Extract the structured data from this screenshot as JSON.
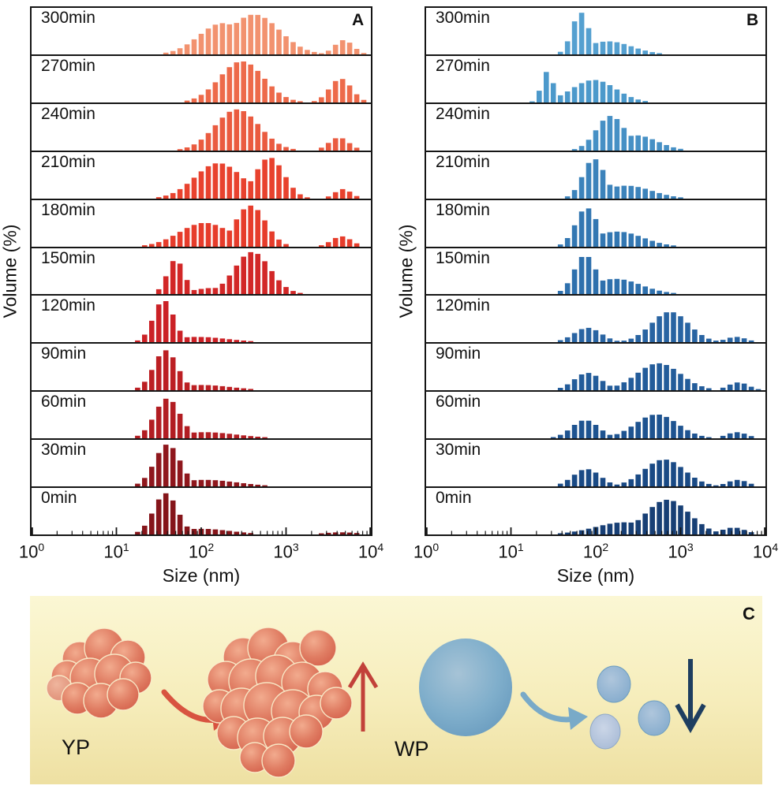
{
  "chart_data": [
    {
      "panel_label": "A",
      "type": "bar",
      "subtype": "stacked-time-histograms",
      "xlabel": "Size (nm)",
      "ylabel": "Volume (%)",
      "x_scale": "log10",
      "x_range_nm": [
        1,
        10000
      ],
      "x_tick_exponents": [
        0,
        1,
        2,
        3,
        4
      ],
      "bars_per_decade": 12,
      "peak_format": "[center_nm, relative_height_0to1, sigma_log10]",
      "rows": [
        {
          "time": "300min",
          "color": "#F2926F",
          "peaks": [
            [
              180,
              0.72,
              0.28
            ],
            [
              420,
              0.92,
              0.3
            ],
            [
              4800,
              0.33,
              0.11
            ]
          ]
        },
        {
          "time": "270min",
          "color": "#ED6A4A",
          "peaks": [
            [
              300,
              0.95,
              0.26
            ],
            [
              4400,
              0.55,
              0.13
            ]
          ]
        },
        {
          "time": "240min",
          "color": "#EA5B40",
          "peaks": [
            [
              265,
              0.95,
              0.26
            ],
            [
              4200,
              0.3,
              0.12
            ]
          ]
        },
        {
          "time": "210min",
          "color": "#E8422E",
          "peaks": [
            [
              160,
              0.82,
              0.28
            ],
            [
              640,
              0.95,
              0.17
            ],
            [
              4700,
              0.22,
              0.1
            ]
          ]
        },
        {
          "time": "180min",
          "color": "#E63C2B",
          "peaks": [
            [
              110,
              0.55,
              0.3
            ],
            [
              380,
              0.95,
              0.18
            ],
            [
              4500,
              0.24,
              0.12
            ]
          ]
        },
        {
          "time": "150min",
          "color": "#D22727",
          "peaks": [
            [
              50,
              0.8,
              0.1
            ],
            [
              140,
              0.14,
              0.25
            ],
            [
              400,
              0.97,
              0.21
            ]
          ]
        },
        {
          "time": "120min",
          "color": "#CB2126",
          "peaks": [
            [
              36,
              0.97,
              0.12
            ],
            [
              90,
              0.12,
              0.35
            ]
          ]
        },
        {
          "time": "90min",
          "color": "#BC1F23",
          "peaks": [
            [
              38,
              0.92,
              0.14
            ],
            [
              100,
              0.12,
              0.35
            ]
          ]
        },
        {
          "time": "60min",
          "color": "#B21D22",
          "peaks": [
            [
              40,
              0.92,
              0.15
            ],
            [
              110,
              0.14,
              0.38
            ]
          ]
        },
        {
          "time": "30min",
          "color": "#8F171D",
          "peaks": [
            [
              40,
              0.97,
              0.15
            ],
            [
              110,
              0.15,
              0.38
            ]
          ]
        },
        {
          "time": "0min",
          "color": "#85151A",
          "peaks": [
            [
              38,
              0.95,
              0.14
            ],
            [
              100,
              0.13,
              0.35
            ],
            [
              4500,
              0.05,
              0.2
            ]
          ]
        }
      ]
    },
    {
      "panel_label": "B",
      "type": "bar",
      "subtype": "stacked-time-histograms",
      "xlabel": "Size (nm)",
      "ylabel": "Volume (%)",
      "x_scale": "log10",
      "x_range_nm": [
        1,
        10000
      ],
      "x_tick_exponents": [
        0,
        1,
        2,
        3,
        4
      ],
      "bars_per_decade": 12,
      "peak_format": "[center_nm, relative_height_0to1, sigma_log10]",
      "rows": [
        {
          "time": "300min",
          "color": "#55A0D0",
          "peaks": [
            [
              66,
              0.97,
              0.1
            ],
            [
              140,
              0.3,
              0.28
            ]
          ]
        },
        {
          "time": "270min",
          "color": "#4C99CB",
          "peaks": [
            [
              27,
              0.72,
              0.07
            ],
            [
              95,
              0.52,
              0.26
            ]
          ]
        },
        {
          "time": "240min",
          "color": "#4690C5",
          "peaks": [
            [
              150,
              0.8,
              0.17
            ],
            [
              300,
              0.35,
              0.25
            ]
          ]
        },
        {
          "time": "210min",
          "color": "#3C83BB",
          "peaks": [
            [
              95,
              0.92,
              0.13
            ],
            [
              230,
              0.3,
              0.3
            ]
          ]
        },
        {
          "time": "180min",
          "color": "#3377B2",
          "peaks": [
            [
              78,
              0.9,
              0.13
            ],
            [
              180,
              0.35,
              0.3
            ]
          ]
        },
        {
          "time": "150min",
          "color": "#2E70AD",
          "peaks": [
            [
              75,
              0.9,
              0.13
            ],
            [
              170,
              0.35,
              0.3
            ]
          ]
        },
        {
          "time": "120min",
          "color": "#2964A2",
          "peaks": [
            [
              80,
              0.33,
              0.16
            ],
            [
              750,
              0.7,
              0.22
            ],
            [
              4500,
              0.12,
              0.12
            ]
          ]
        },
        {
          "time": "90min",
          "color": "#235C9A",
          "peaks": [
            [
              80,
              0.4,
              0.16
            ],
            [
              550,
              0.62,
              0.26
            ],
            [
              4800,
              0.18,
              0.12
            ]
          ]
        },
        {
          "time": "60min",
          "color": "#1E5390",
          "peaks": [
            [
              75,
              0.42,
              0.16
            ],
            [
              520,
              0.55,
              0.25
            ],
            [
              4600,
              0.14,
              0.12
            ]
          ]
        },
        {
          "time": "30min",
          "color": "#1A4A85",
          "peaks": [
            [
              78,
              0.4,
              0.16
            ],
            [
              640,
              0.62,
              0.24
            ],
            [
              4700,
              0.15,
              0.12
            ]
          ]
        },
        {
          "time": "0min",
          "color": "#173F75",
          "peaks": [
            [
              220,
              0.28,
              0.35
            ],
            [
              700,
              0.8,
              0.26
            ],
            [
              4200,
              0.16,
              0.14
            ]
          ]
        }
      ]
    }
  ],
  "panelC": {
    "panel_label": "C",
    "yp_label": "YP",
    "wp_label": "WP",
    "background_top": "#FBF7D4",
    "background_bottom": "#EEE0A2",
    "yp_sphere_color": "#DC6B52",
    "wp_sphere_color": "#7FAECB",
    "red_arrow_color": "#D85340",
    "blue_arrow_color": "#79AAC8",
    "up_arrow_color": "#C2413A",
    "down_arrow_color": "#1E3E60"
  }
}
